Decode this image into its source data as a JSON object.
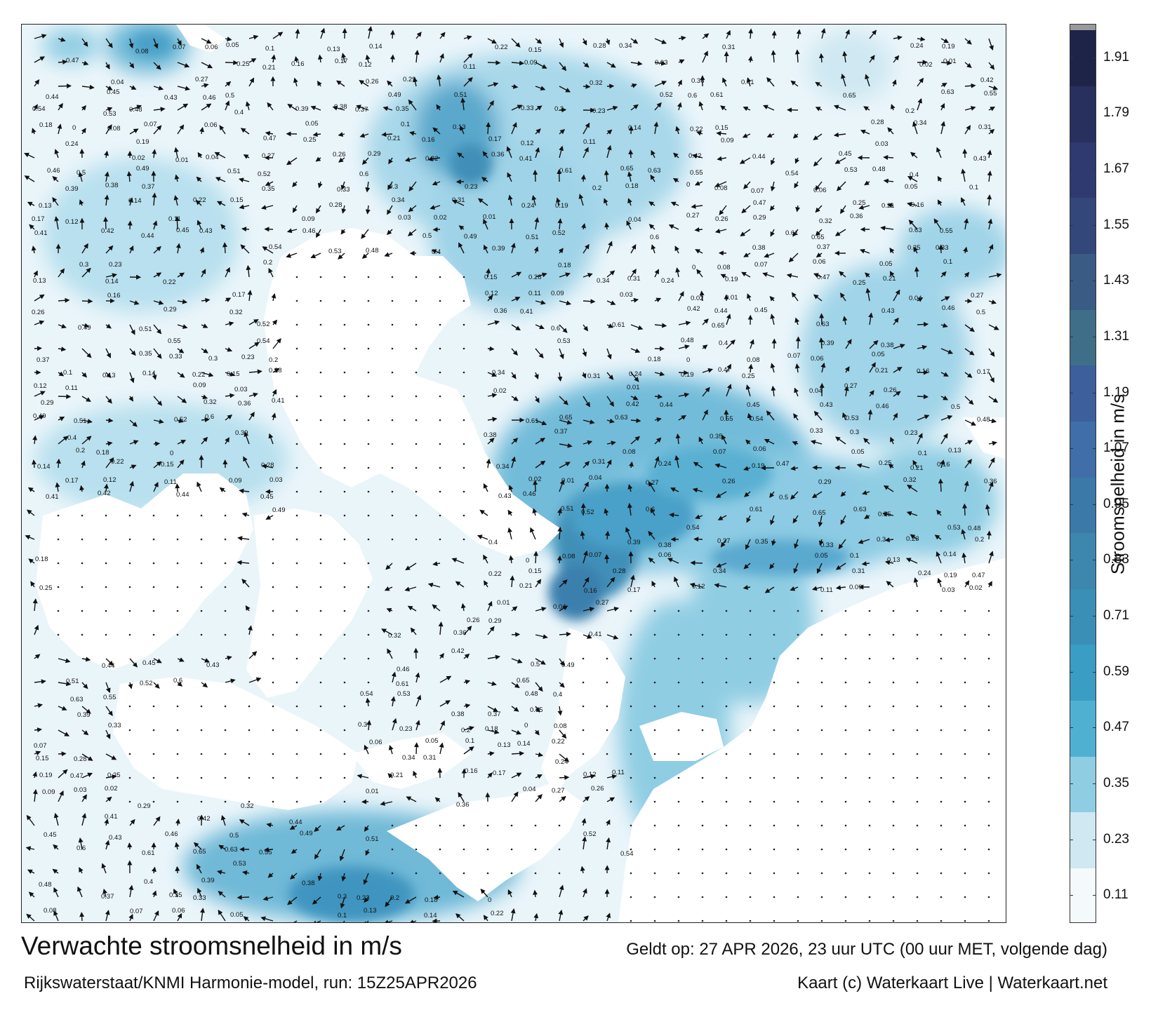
{
  "title": "Verwachte stroomsnelheid in m/s",
  "valid_time": "Geldt op: 27 APR 2026, 23 uur UTC (00 uur MET, volgende dag)",
  "source": "Rijkswaterstaat/KNMI Harmonie-model, run: 15Z25APR2026",
  "credit": "Kaart (c) Waterkaart Live | Waterkaart.net",
  "colorbar": {
    "label": "Stroomsnelheid in m/s",
    "ticks": [
      "0.11",
      "0.23",
      "0.35",
      "0.47",
      "0.59",
      "0.71",
      "0.83",
      "0.95",
      "1.07",
      "1.19",
      "1.31",
      "1.43",
      "1.55",
      "1.67",
      "1.79",
      "1.91"
    ],
    "colors": [
      "#f4f9fc",
      "#cfe8f2",
      "#8fcde3",
      "#4fb0d2",
      "#3a9dc3",
      "#3a8fb6",
      "#3d86ae",
      "#3b79a8",
      "#3f6ea8",
      "#3d5f9c",
      "#3f6f88",
      "#3a5b84",
      "#34477a",
      "#2e3a70",
      "#28305e",
      "#1e2448"
    ],
    "value_min": 0.05,
    "value_max": 1.97
  },
  "map": {
    "icons": {
      "arrow": "current-arrow-icon",
      "dot": "calm-dot-icon"
    },
    "colors": {
      "land": "#ffffff",
      "sea_low": "#eaf5fa",
      "sea_mid": "#7ec4df",
      "sea_high": "#2f8cb8",
      "sea_peak": "#2a6fa3"
    },
    "labels": [
      {
        "t": "0.08",
        "v": 0.08
      },
      {
        "t": "0.07",
        "v": 0.07
      },
      {
        "t": "0.06",
        "v": 0.06
      },
      {
        "t": "0.05",
        "v": 0.05
      },
      {
        "t": "0.1",
        "v": 0.1
      },
      {
        "t": "0.13",
        "v": 0.13
      },
      {
        "t": "0.14",
        "v": 0.14
      },
      {
        "t": "0.22",
        "v": 0.22
      },
      {
        "t": "0.15",
        "v": 0.15
      },
      {
        "t": "0.28",
        "v": 0.28
      },
      {
        "t": "0.34",
        "v": 0.34
      },
      {
        "t": "0.31",
        "v": 0.31
      },
      {
        "t": "0.24",
        "v": 0.24
      },
      {
        "t": "0.19",
        "v": 0.19
      },
      {
        "t": "0.47",
        "v": 0.47
      },
      {
        "t": "0.25",
        "v": 0.25
      },
      {
        "t": "0.21",
        "v": 0.21
      },
      {
        "t": "0.16",
        "v": 0.16
      },
      {
        "t": "0.17",
        "v": 0.17
      },
      {
        "t": "0.12",
        "v": 0.12
      },
      {
        "t": "0.11",
        "v": 0.11
      },
      {
        "t": "0.09",
        "v": 0.09
      },
      {
        "t": "0.03",
        "v": 0.03
      },
      {
        "t": "0.02",
        "v": 0.02
      },
      {
        "t": "0.01",
        "v": 0.01
      },
      {
        "t": "0.04",
        "v": 0.04
      },
      {
        "t": "0.27",
        "v": 0.27
      },
      {
        "t": "0.26",
        "v": 0.26
      },
      {
        "t": "0.29",
        "v": 0.29
      },
      {
        "t": "0.32",
        "v": 0.32
      },
      {
        "t": "0.36",
        "v": 0.36
      },
      {
        "t": "0.41",
        "v": 0.41
      },
      {
        "t": "0.42",
        "v": 0.42
      },
      {
        "t": "0.44",
        "v": 0.44
      },
      {
        "t": "0.45",
        "v": 0.45
      },
      {
        "t": "0.43",
        "v": 0.43
      },
      {
        "t": "0.46",
        "v": 0.46
      },
      {
        "t": "0.5",
        "v": 0.5
      },
      {
        "t": "0.49",
        "v": 0.49
      },
      {
        "t": "0.51",
        "v": 0.51
      },
      {
        "t": "0.52",
        "v": 0.52
      },
      {
        "t": "0.6",
        "v": 0.6
      },
      {
        "t": "0.61",
        "v": 0.61
      },
      {
        "t": "0.65",
        "v": 0.65
      },
      {
        "t": "0.63",
        "v": 0.63
      },
      {
        "t": "0.55",
        "v": 0.55
      },
      {
        "t": "0.54",
        "v": 0.54
      },
      {
        "t": "0.53",
        "v": 0.53
      },
      {
        "t": "0.48",
        "v": 0.48
      },
      {
        "t": "0.4",
        "v": 0.4
      },
      {
        "t": "0.39",
        "v": 0.39
      },
      {
        "t": "0.38",
        "v": 0.38
      },
      {
        "t": "0.37",
        "v": 0.37
      },
      {
        "t": "0.35",
        "v": 0.35
      },
      {
        "t": "0.33",
        "v": 0.33
      },
      {
        "t": "0.3",
        "v": 0.3
      },
      {
        "t": "0.23",
        "v": 0.23
      },
      {
        "t": "0.2",
        "v": 0.2
      },
      {
        "t": "0.18",
        "v": 0.18
      },
      {
        "t": "0",
        "v": 0
      }
    ]
  }
}
